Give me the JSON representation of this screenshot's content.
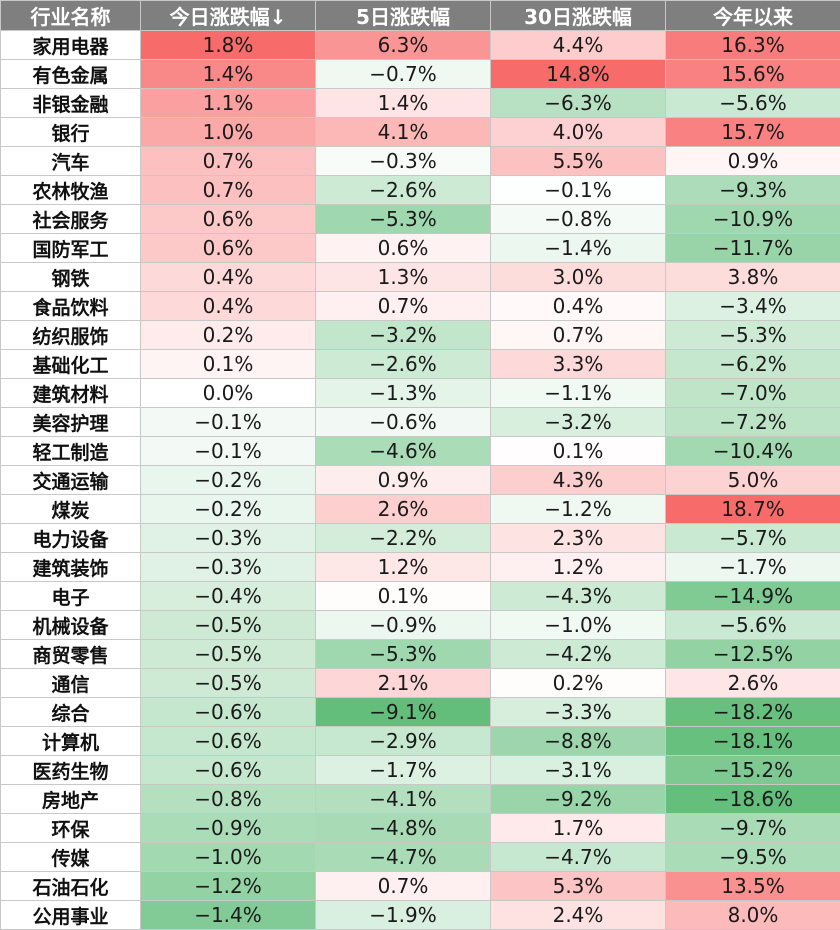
{
  "chart_data": {
    "type": "table",
    "columns": [
      "行业名称",
      "今日涨跌幅↓",
      "5日涨跌幅",
      "30日涨跌幅",
      "今年以来"
    ],
    "rows": [
      {
        "name": "家用电器",
        "values": [
          "1.8%",
          "6.3%",
          "4.4%",
          "16.3%"
        ]
      },
      {
        "name": "有色金属",
        "values": [
          "1.4%",
          "−0.7%",
          "14.8%",
          "15.6%"
        ]
      },
      {
        "name": "非银金融",
        "values": [
          "1.1%",
          "1.4%",
          "−6.3%",
          "−5.6%"
        ]
      },
      {
        "name": "银行",
        "values": [
          "1.0%",
          "4.1%",
          "4.0%",
          "15.7%"
        ]
      },
      {
        "name": "汽车",
        "values": [
          "0.7%",
          "−0.3%",
          "5.5%",
          "0.9%"
        ]
      },
      {
        "name": "农林牧渔",
        "values": [
          "0.7%",
          "−2.6%",
          "−0.1%",
          "−9.3%"
        ]
      },
      {
        "name": "社会服务",
        "values": [
          "0.6%",
          "−5.3%",
          "−0.8%",
          "−10.9%"
        ]
      },
      {
        "name": "国防军工",
        "values": [
          "0.6%",
          "0.6%",
          "−1.4%",
          "−11.7%"
        ]
      },
      {
        "name": "钢铁",
        "values": [
          "0.4%",
          "1.3%",
          "3.0%",
          "3.8%"
        ]
      },
      {
        "name": "食品饮料",
        "values": [
          "0.4%",
          "0.7%",
          "0.4%",
          "−3.4%"
        ]
      },
      {
        "name": "纺织服饰",
        "values": [
          "0.2%",
          "−3.2%",
          "0.7%",
          "−5.3%"
        ]
      },
      {
        "name": "基础化工",
        "values": [
          "0.1%",
          "−2.6%",
          "3.3%",
          "−6.2%"
        ]
      },
      {
        "name": "建筑材料",
        "values": [
          "0.0%",
          "−1.3%",
          "−1.1%",
          "−7.0%"
        ]
      },
      {
        "name": "美容护理",
        "values": [
          "−0.1%",
          "−0.6%",
          "−3.2%",
          "−7.2%"
        ]
      },
      {
        "name": "轻工制造",
        "values": [
          "−0.1%",
          "−4.6%",
          "0.1%",
          "−10.4%"
        ]
      },
      {
        "name": "交通运输",
        "values": [
          "−0.2%",
          "0.9%",
          "4.3%",
          "5.0%"
        ]
      },
      {
        "name": "煤炭",
        "values": [
          "−0.2%",
          "2.6%",
          "−1.2%",
          "18.7%"
        ]
      },
      {
        "name": "电力设备",
        "values": [
          "−0.3%",
          "−2.2%",
          "2.3%",
          "−5.7%"
        ]
      },
      {
        "name": "建筑装饰",
        "values": [
          "−0.3%",
          "1.2%",
          "1.2%",
          "−1.7%"
        ]
      },
      {
        "name": "电子",
        "values": [
          "−0.4%",
          "0.1%",
          "−4.3%",
          "−14.9%"
        ]
      },
      {
        "name": "机械设备",
        "values": [
          "−0.5%",
          "−0.9%",
          "−1.0%",
          "−5.6%"
        ]
      },
      {
        "name": "商贸零售",
        "values": [
          "−0.5%",
          "−5.3%",
          "−4.2%",
          "−12.5%"
        ]
      },
      {
        "name": "通信",
        "values": [
          "−0.5%",
          "2.1%",
          "0.2%",
          "2.6%"
        ]
      },
      {
        "name": "综合",
        "values": [
          "−0.6%",
          "−9.1%",
          "−3.3%",
          "−18.2%"
        ]
      },
      {
        "name": "计算机",
        "values": [
          "−0.6%",
          "−2.9%",
          "−8.8%",
          "−18.1%"
        ]
      },
      {
        "name": "医药生物",
        "values": [
          "−0.6%",
          "−1.7%",
          "−3.1%",
          "−15.2%"
        ]
      },
      {
        "name": "房地产",
        "values": [
          "−0.8%",
          "−4.1%",
          "−9.2%",
          "−18.6%"
        ]
      },
      {
        "name": "环保",
        "values": [
          "−0.9%",
          "−4.8%",
          "1.7%",
          "−9.7%"
        ]
      },
      {
        "name": "传媒",
        "values": [
          "−1.0%",
          "−4.7%",
          "−4.7%",
          "−9.5%"
        ]
      },
      {
        "name": "石油石化",
        "values": [
          "−1.2%",
          "0.7%",
          "5.3%",
          "13.5%"
        ]
      },
      {
        "name": "公用事业",
        "values": [
          "−1.4%",
          "−1.9%",
          "2.4%",
          "8.0%"
        ]
      }
    ],
    "colors": {
      "header_bg": "#7f7f7f",
      "positive_max": "#f86b6b",
      "negative_max": "#63be7b",
      "neutral": "#ffffff"
    }
  }
}
